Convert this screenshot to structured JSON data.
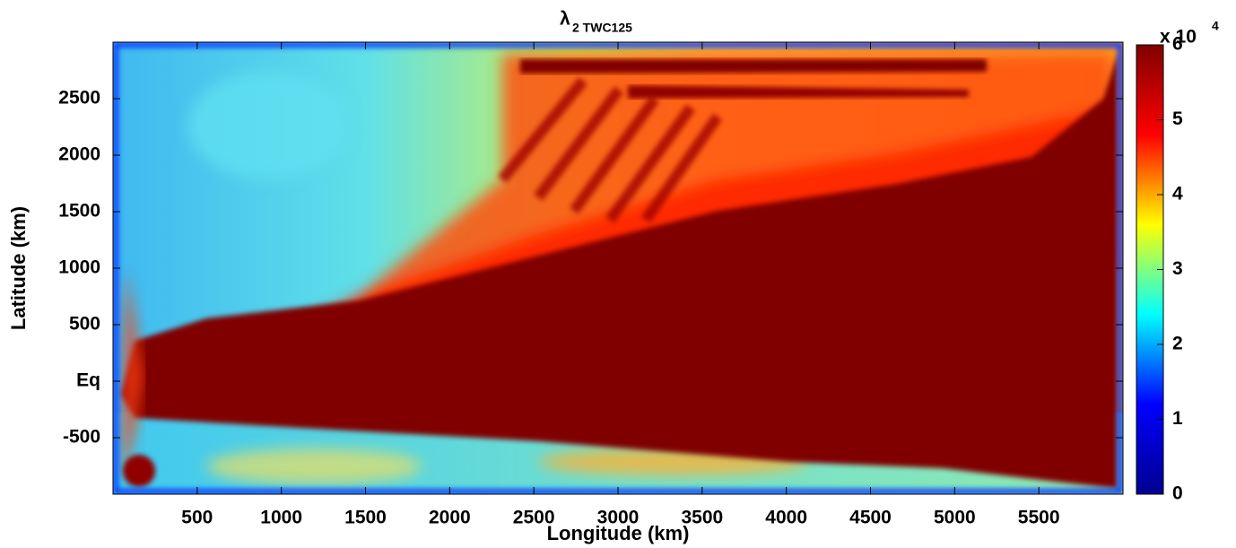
{
  "chart_data": {
    "type": "heatmap",
    "title": "λ",
    "title_subscript": "2 TWC125",
    "x_label": "Longitude (km)",
    "y_label": "Latitude (km)",
    "xlim": [
      0,
      6000
    ],
    "xticks": [
      500,
      1000,
      1500,
      2000,
      2500,
      3000,
      3500,
      4000,
      4500,
      5000,
      5500
    ],
    "ylim": [
      -1000,
      3000
    ],
    "yticks": [
      -500,
      {
        "value": 0,
        "label": "Eq"
      },
      500,
      1000,
      1500,
      2000,
      2500
    ],
    "colorbar": {
      "label": "x 10",
      "exponent": "4",
      "lim": [
        0,
        6
      ],
      "ticks": [
        0,
        1,
        2,
        3,
        4,
        5,
        6
      ],
      "colors": [
        "#00008f",
        "#0000ff",
        "#00ffff",
        "#ffff00",
        "#ff0000",
        "#800000"
      ]
    }
  }
}
